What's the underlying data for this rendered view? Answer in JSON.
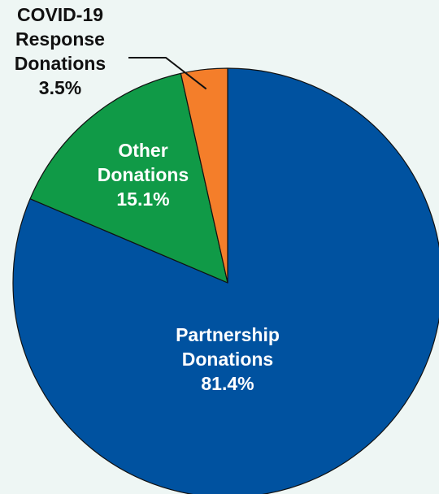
{
  "chart_data": {
    "type": "pie",
    "start_angle_deg": 0,
    "direction": "clockwise",
    "slices": [
      {
        "name": "Partnership Donations",
        "label_lines": [
          "Partnership",
          "Donations"
        ],
        "value": 81.4,
        "value_label": "81.4%",
        "color": "#0052a0",
        "label_color": "#ffffff"
      },
      {
        "name": "Other Donations",
        "label_lines": [
          "Other",
          "Donations"
        ],
        "value": 15.1,
        "value_label": "15.1%",
        "color": "#109a47",
        "label_color": "#ffffff"
      },
      {
        "name": "COVID-19 Response Donations",
        "label_lines": [
          "COVID-19",
          "Response",
          "Donations"
        ],
        "value": 3.5,
        "value_label": "3.5%",
        "color": "#f47e2a",
        "label_color": "#111111"
      }
    ]
  }
}
